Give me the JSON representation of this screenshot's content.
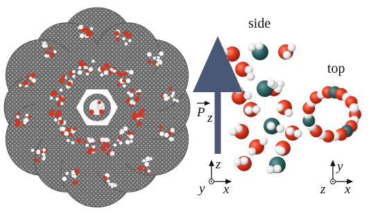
{
  "labels": {
    "side": "side",
    "top": "top"
  },
  "dipole": {
    "symbol": "P",
    "subscript": "z"
  },
  "axes_side": {
    "vertical": "z",
    "out": "y",
    "horizontal": "x"
  },
  "axes_top": {
    "vertical": "y",
    "out": "z",
    "horizontal": "x"
  }
}
